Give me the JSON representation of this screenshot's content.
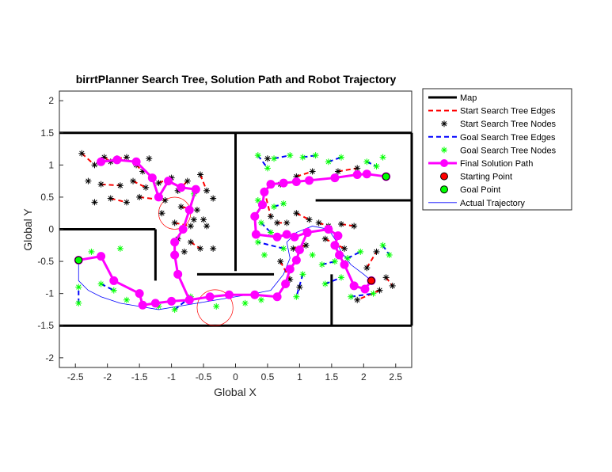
{
  "chart_data": {
    "type": "line",
    "title": "birrtPlanner Search Tree, Solution Path and Robot Trajectory",
    "xlabel": "Global X",
    "ylabel": "Global Y",
    "xlim": [
      -2.75,
      2.75
    ],
    "ylim": [
      -2.15,
      2.15
    ],
    "xticks": [
      -2.5,
      -2,
      -1.5,
      -1,
      -0.5,
      0,
      0.5,
      1,
      1.5,
      2,
      2.5
    ],
    "xtick_labels": [
      "-2.5",
      "-2",
      "-1.5",
      "-1",
      "-0.5",
      "0",
      "0.5",
      "1",
      "1.5",
      "2",
      "2.5"
    ],
    "yticks": [
      2,
      1.5,
      1,
      0.5,
      0,
      -0.5,
      -1,
      -1.5,
      -2
    ],
    "ytick_labels": [
      "2",
      "1.5",
      "1",
      "0.5",
      "0",
      "-0.5",
      "-1",
      "-1.5",
      "-2"
    ],
    "grid": false,
    "legend_position": "outside-top-right",
    "colors": {
      "map": "#000000",
      "start_tree": "#ff0000",
      "goal_tree": "#0000ff",
      "start_nodes": "#000000",
      "goal_nodes": "#00ff00",
      "solution": "#ff00ff",
      "start_point": "#ff0000",
      "goal_point": "#00ff00",
      "trajectory": "#0000ff"
    },
    "legend": [
      {
        "key": "map",
        "label": "Map"
      },
      {
        "key": "start_edges",
        "label": "Start Search Tree Edges"
      },
      {
        "key": "start_nodes",
        "label": "Start Search Tree Nodes"
      },
      {
        "key": "goal_edges",
        "label": "Goal Search Tree Edges"
      },
      {
        "key": "goal_nodes",
        "label": "Goal Search Tree Nodes"
      },
      {
        "key": "solution",
        "label": "Final Solution Path"
      },
      {
        "key": "start_point",
        "label": "Starting Point"
      },
      {
        "key": "goal_point",
        "label": "Goal Point"
      },
      {
        "key": "trajectory",
        "label": "Actual Trajectory"
      }
    ],
    "map_segments": [
      [
        [
          -2.75,
          1.5
        ],
        [
          2.75,
          1.5
        ]
      ],
      [
        [
          -2.75,
          -1.5
        ],
        [
          2.75,
          -1.5
        ]
      ],
      [
        [
          2.75,
          1.5
        ],
        [
          2.75,
          -1.5
        ]
      ],
      [
        [
          -2.75,
          0
        ],
        [
          -1.25,
          0
        ]
      ],
      [
        [
          -1.25,
          0
        ],
        [
          -1.25,
          -0.8
        ]
      ],
      [
        [
          0,
          1.5
        ],
        [
          0,
          -0.65
        ]
      ],
      [
        [
          -0.6,
          -0.7
        ],
        [
          0.6,
          -0.7
        ]
      ],
      [
        [
          1.5,
          -0.7
        ],
        [
          1.5,
          -1.5
        ]
      ],
      [
        [
          1.25,
          0.45
        ],
        [
          2.75,
          0.45
        ]
      ]
    ],
    "start_point": [
      2.12,
      -0.8
    ],
    "goal_point": [
      -2.45,
      -0.48
    ],
    "solution_path": [
      [
        2.35,
        0.82
      ],
      [
        2.05,
        0.86
      ],
      [
        1.9,
        0.85
      ],
      [
        1.55,
        0.8
      ],
      [
        1.15,
        0.76
      ],
      [
        0.95,
        0.74
      ],
      [
        0.75,
        0.72
      ],
      [
        0.55,
        0.7
      ],
      [
        0.45,
        0.58
      ],
      [
        0.42,
        0.38
      ],
      [
        0.3,
        0.2
      ],
      [
        0.32,
        -0.08
      ],
      [
        0.65,
        -0.12
      ],
      [
        0.8,
        -0.08
      ],
      [
        0.92,
        -0.12
      ],
      [
        1.12,
        -0.05
      ],
      [
        1.45,
        0.0
      ],
      [
        1.6,
        -0.1
      ],
      [
        1.55,
        -0.25
      ],
      [
        1.62,
        -0.4
      ],
      [
        1.7,
        -0.55
      ],
      [
        1.85,
        -0.88
      ],
      [
        2.02,
        -0.93
      ],
      [
        2.12,
        -0.8
      ]
    ],
    "solution_path_2": [
      [
        -2.45,
        -0.48
      ],
      [
        -2.1,
        -0.42
      ],
      [
        -1.9,
        -0.8
      ],
      [
        -1.5,
        -1.0
      ],
      [
        -1.45,
        -1.18
      ],
      [
        -1.25,
        -1.15
      ],
      [
        -1.0,
        -1.12
      ],
      [
        -0.72,
        -1.1
      ],
      [
        -0.4,
        -1.05
      ],
      [
        -0.1,
        -1.02
      ],
      [
        0.3,
        -1.02
      ],
      [
        0.65,
        -1.05
      ],
      [
        0.78,
        -0.85
      ],
      [
        0.85,
        -0.62
      ],
      [
        0.95,
        -0.48
      ],
      [
        1.0,
        -0.32
      ],
      [
        1.12,
        -0.05
      ]
    ],
    "solution_path_3": [
      [
        -0.72,
        -1.1
      ],
      [
        -0.9,
        -0.7
      ],
      [
        -0.95,
        -0.4
      ],
      [
        -0.95,
        -0.2
      ],
      [
        -0.82,
        0.0
      ],
      [
        -0.72,
        0.3
      ],
      [
        -0.62,
        0.62
      ],
      [
        -0.85,
        0.65
      ],
      [
        -1.05,
        0.75
      ],
      [
        -1.2,
        0.5
      ],
      [
        -1.3,
        0.8
      ],
      [
        -1.55,
        1.05
      ],
      [
        -1.85,
        1.08
      ],
      [
        -2.1,
        1.05
      ]
    ],
    "trajectory": [
      [
        2.12,
        -0.8
      ],
      [
        2.0,
        -0.7
      ],
      [
        1.8,
        -0.55
      ],
      [
        1.65,
        -0.35
      ],
      [
        1.55,
        -0.15
      ],
      [
        1.45,
        0.0
      ],
      [
        1.2,
        0.05
      ],
      [
        0.95,
        -0.05
      ],
      [
        0.8,
        -0.2
      ],
      [
        0.85,
        -0.45
      ],
      [
        0.75,
        -0.7
      ],
      [
        0.55,
        -0.95
      ],
      [
        0.3,
        -1.0
      ],
      [
        0.0,
        -1.05
      ],
      [
        -0.3,
        -1.1
      ],
      [
        -0.6,
        -1.15
      ],
      [
        -0.9,
        -1.2
      ],
      [
        -1.2,
        -1.25
      ],
      [
        -1.5,
        -1.2
      ],
      [
        -1.8,
        -1.15
      ],
      [
        -2.1,
        -1.05
      ],
      [
        -2.3,
        -0.95
      ],
      [
        -2.45,
        -0.8
      ],
      [
        -2.45,
        -0.48
      ]
    ],
    "start_nodes": [
      [
        -2.4,
        1.18
      ],
      [
        -2.2,
        1.0
      ],
      [
        -2.05,
        1.12
      ],
      [
        -1.95,
        1.05
      ],
      [
        -1.85,
        1.1
      ],
      [
        -1.7,
        1.12
      ],
      [
        -1.55,
        1.0
      ],
      [
        -1.45,
        0.9
      ],
      [
        -1.35,
        1.1
      ],
      [
        -2.3,
        0.75
      ],
      [
        -2.1,
        0.7
      ],
      [
        -1.8,
        0.68
      ],
      [
        -1.6,
        0.75
      ],
      [
        -1.4,
        0.65
      ],
      [
        -1.2,
        0.72
      ],
      [
        -1.0,
        0.8
      ],
      [
        -0.9,
        0.6
      ],
      [
        -0.75,
        0.75
      ],
      [
        -0.55,
        0.85
      ],
      [
        -0.45,
        0.6
      ],
      [
        -0.35,
        0.48
      ],
      [
        -2.2,
        0.42
      ],
      [
        -1.95,
        0.48
      ],
      [
        -1.7,
        0.42
      ],
      [
        -1.5,
        0.5
      ],
      [
        -1.1,
        0.45
      ],
      [
        -0.85,
        0.35
      ],
      [
        -0.6,
        0.3
      ],
      [
        -0.5,
        0.15
      ],
      [
        -1.15,
        0.25
      ],
      [
        -0.95,
        0.1
      ],
      [
        -0.7,
        0.05
      ],
      [
        -0.45,
        0.05
      ],
      [
        -0.9,
        -0.15
      ],
      [
        -0.7,
        -0.2
      ],
      [
        -0.55,
        -0.3
      ],
      [
        -0.35,
        -0.3
      ],
      [
        -0.8,
        -0.35
      ],
      [
        -0.65,
        0.15
      ],
      [
        0.5,
        1.1
      ],
      [
        0.45,
        0.6
      ],
      [
        0.55,
        0.2
      ],
      [
        0.65,
        0.1
      ],
      [
        0.8,
        0.1
      ],
      [
        0.95,
        0.25
      ],
      [
        1.15,
        0.15
      ],
      [
        1.3,
        0.1
      ],
      [
        1.45,
        0.05
      ],
      [
        1.65,
        0.08
      ],
      [
        1.85,
        0.05
      ],
      [
        0.9,
        -0.3
      ],
      [
        1.1,
        -0.25
      ],
      [
        1.4,
        -0.15
      ],
      [
        1.7,
        -0.3
      ],
      [
        2.05,
        -0.6
      ],
      [
        2.2,
        -0.35
      ],
      [
        2.25,
        -0.95
      ],
      [
        1.9,
        -1.1
      ],
      [
        2.35,
        -0.75
      ],
      [
        2.45,
        -0.88
      ],
      [
        0.7,
        -0.5
      ],
      [
        0.85,
        -0.78
      ],
      [
        1.0,
        -0.9
      ],
      [
        0.7,
        0.7
      ],
      [
        0.95,
        0.82
      ],
      [
        1.2,
        0.9
      ],
      [
        1.6,
        0.9
      ],
      [
        1.9,
        0.95
      ]
    ],
    "goal_nodes": [
      [
        0.35,
        1.15
      ],
      [
        0.5,
        0.95
      ],
      [
        0.6,
        1.1
      ],
      [
        0.85,
        1.15
      ],
      [
        1.05,
        1.12
      ],
      [
        1.25,
        1.15
      ],
      [
        1.45,
        1.05
      ],
      [
        1.65,
        1.12
      ],
      [
        2.05,
        1.05
      ],
      [
        2.2,
        0.98
      ],
      [
        2.3,
        1.12
      ],
      [
        0.35,
        0.45
      ],
      [
        0.6,
        0.35
      ],
      [
        0.75,
        0.4
      ],
      [
        0.4,
        0.1
      ],
      [
        0.55,
        -0.05
      ],
      [
        0.75,
        -0.3
      ],
      [
        0.35,
        -0.2
      ],
      [
        0.45,
        -0.4
      ],
      [
        1.2,
        -0.4
      ],
      [
        1.35,
        -0.55
      ],
      [
        1.55,
        -0.5
      ],
      [
        1.75,
        -0.45
      ],
      [
        1.95,
        -0.35
      ],
      [
        2.3,
        -0.25
      ],
      [
        2.4,
        -0.4
      ],
      [
        1.4,
        -0.85
      ],
      [
        1.65,
        -0.75
      ],
      [
        1.05,
        -0.7
      ],
      [
        0.95,
        -1.05
      ],
      [
        1.8,
        -1.05
      ],
      [
        2.15,
        -1.0
      ],
      [
        -2.45,
        -1.15
      ],
      [
        -2.45,
        -0.9
      ],
      [
        -2.1,
        -0.85
      ],
      [
        -1.9,
        -0.95
      ],
      [
        -2.25,
        -0.35
      ],
      [
        -1.8,
        -0.3
      ],
      [
        -1.7,
        -1.1
      ],
      [
        -1.2,
        -1.2
      ],
      [
        -0.95,
        -1.25
      ],
      [
        -0.7,
        -1.05
      ],
      [
        -0.3,
        -1.2
      ],
      [
        0.15,
        -1.15
      ],
      [
        0.4,
        -1.1
      ],
      [
        -0.65,
        0.55
      ]
    ],
    "circles": [
      [
        -0.95,
        0.25,
        0.25
      ],
      [
        -0.32,
        -1.22,
        0.28
      ]
    ]
  }
}
